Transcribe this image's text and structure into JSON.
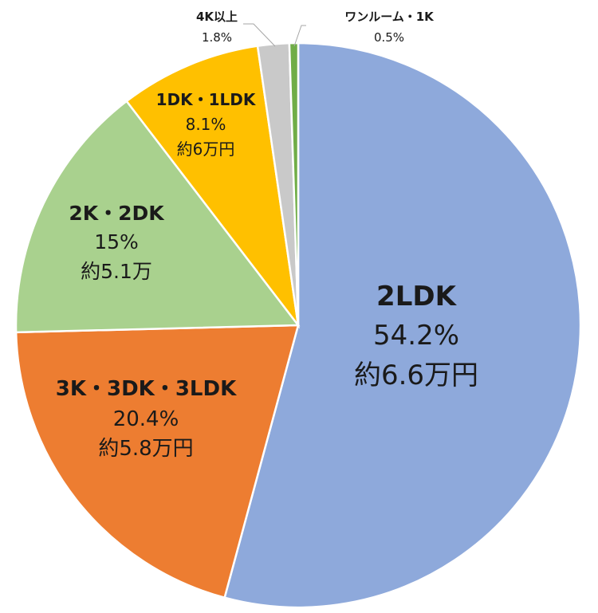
{
  "chart_data": {
    "type": "pie",
    "start": "top",
    "direction": "clockwise",
    "slices": [
      {
        "name": "2LDK",
        "value": 54.2,
        "pct_label": "54.2%",
        "price_label": "約6.6万円",
        "color": "#8EA9DB"
      },
      {
        "name": "3K・3DK・3LDK",
        "value": 20.4,
        "pct_label": "20.4%",
        "price_label": "約5.8万円",
        "color": "#ED7D31"
      },
      {
        "name": "2K・2DK",
        "value": 15,
        "pct_label": "15%",
        "price_label": "約5.1万",
        "color": "#A9D18E"
      },
      {
        "name": "1DK・1LDK",
        "value": 8.1,
        "pct_label": "8.1%",
        "price_label": "約6万円",
        "color": "#FFC000"
      },
      {
        "name": "4K以上",
        "value": 1.8,
        "pct_label": "1.8%",
        "price_label": "",
        "color": "#C9C9C9"
      },
      {
        "name": "ワンルーム・1K",
        "value": 0.5,
        "pct_label": "0.5%",
        "price_label": "",
        "color": "#70AD47"
      }
    ]
  }
}
